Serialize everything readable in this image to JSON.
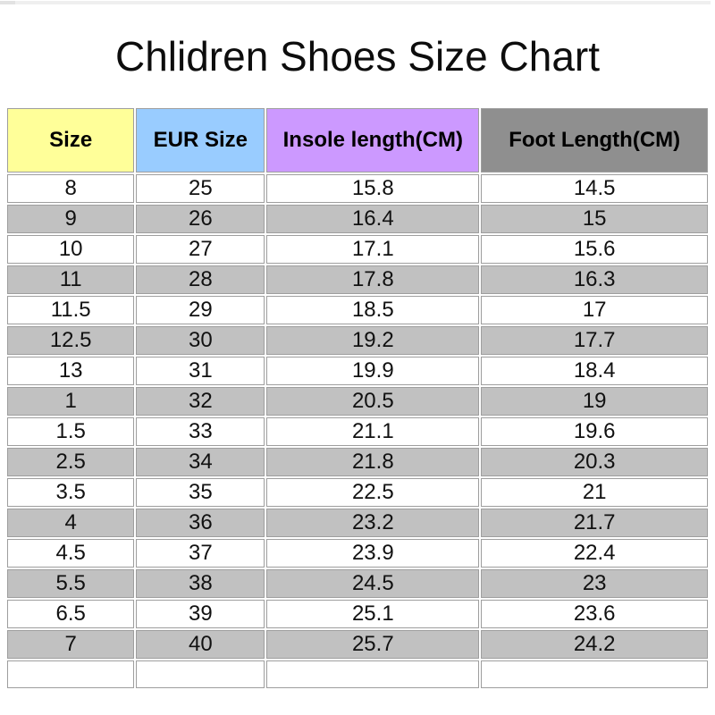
{
  "page": {
    "title": "Chlidren Shoes Size Chart",
    "background_color": "#FFFFFF",
    "top_bar_color": "#EFEFEF"
  },
  "chart_data": {
    "type": "table",
    "title": "Chlidren Shoes Size Chart",
    "columns": [
      "Size",
      "EUR Size",
      "Insole length(CM)",
      "Foot Length(CM)"
    ],
    "rows": [
      [
        "8",
        "25",
        "15.8",
        "14.5"
      ],
      [
        "9",
        "26",
        "16.4",
        "15"
      ],
      [
        "10",
        "27",
        "17.1",
        "15.6"
      ],
      [
        "11",
        "28",
        "17.8",
        "16.3"
      ],
      [
        "11.5",
        "29",
        "18.5",
        "17"
      ],
      [
        "12.5",
        "30",
        "19.2",
        "17.7"
      ],
      [
        "13",
        "31",
        "19.9",
        "18.4"
      ],
      [
        "1",
        "32",
        "20.5",
        "19"
      ],
      [
        "1.5",
        "33",
        "21.1",
        "19.6"
      ],
      [
        "2.5",
        "34",
        "21.8",
        "20.3"
      ],
      [
        "3.5",
        "35",
        "22.5",
        "21"
      ],
      [
        "4",
        "36",
        "23.2",
        "21.7"
      ],
      [
        "4.5",
        "37",
        "23.9",
        "22.4"
      ],
      [
        "5.5",
        "38",
        "24.5",
        "23"
      ],
      [
        "6.5",
        "39",
        "25.1",
        "23.6"
      ],
      [
        "7",
        "40",
        "25.7",
        "24.2"
      ],
      [
        "",
        "",
        "",
        ""
      ]
    ],
    "header_colors": {
      "size": "#FFFF99",
      "eur_size": "#99CCFF",
      "insole_length": "#CC99FF",
      "foot_length": "#8F8F8F"
    },
    "alt_row_color": "#C1C1C1",
    "grid_color": "#9E9E9E",
    "layout": {
      "grid": "on",
      "striped_rows": true,
      "trailing_empty_row": true
    }
  }
}
